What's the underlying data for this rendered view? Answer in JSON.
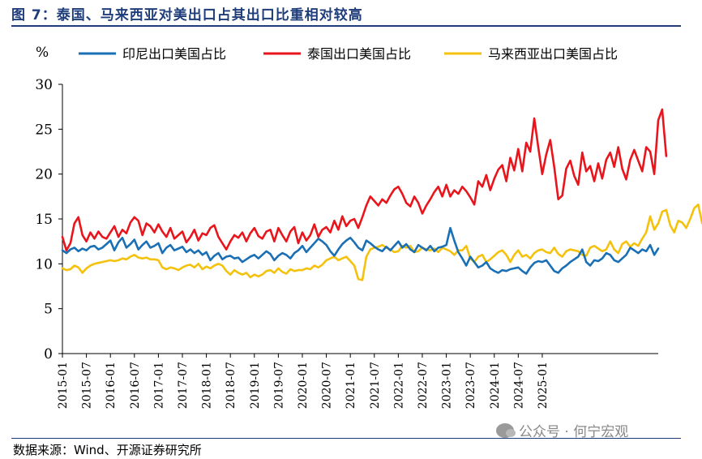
{
  "header": {
    "title": "图 7：泰国、马来西亚对美出口占其出口比重相对较高"
  },
  "footer": {
    "source": "数据来源：Wind、开源证券研究所",
    "watermark": "公众号 · 何宁宏观"
  },
  "chart_data": {
    "type": "line",
    "ylabel": "%",
    "ylim": [
      0,
      30
    ],
    "yticks": [
      0,
      5,
      10,
      15,
      20,
      25,
      30
    ],
    "x_labels": [
      "2015-01",
      "2015-07",
      "2016-01",
      "2016-07",
      "2017-01",
      "2017-07",
      "2018-01",
      "2018-07",
      "2019-01",
      "2019-07",
      "2020-01",
      "2020-07",
      "2021-01",
      "2021-07",
      "2022-01",
      "2022-07",
      "2023-01",
      "2023-07",
      "2024-01",
      "2024-07",
      "2025-01"
    ],
    "x_start": "2015-01",
    "legend_position": "top",
    "series": [
      {
        "name": "印尼出口美国占比",
        "color": "#1a6fb5",
        "values": [
          11.5,
          11.2,
          11.6,
          11.8,
          11.4,
          11.7,
          11.5,
          11.9,
          12.0,
          11.6,
          11.8,
          12.2,
          12.6,
          11.5,
          12.4,
          12.9,
          11.8,
          12.2,
          12.7,
          11.6,
          12.1,
          12.5,
          11.8,
          12.0,
          12.3,
          11.2,
          11.8,
          12.1,
          11.5,
          11.7,
          11.9,
          11.3,
          11.6,
          11.2,
          11.5,
          11.0,
          11.3,
          10.4,
          10.9,
          11.2,
          10.5,
          10.8,
          10.9,
          10.6,
          10.7,
          10.2,
          10.5,
          10.8,
          11.0,
          10.6,
          11.0,
          11.4,
          11.1,
          10.4,
          10.9,
          11.2,
          11.0,
          10.6,
          11.2,
          11.5,
          12.0,
          11.3,
          11.8,
          12.3,
          12.8,
          12.5,
          12.1,
          11.4,
          10.9,
          11.6,
          12.2,
          12.6,
          12.9,
          12.4,
          11.8,
          11.5,
          12.6,
          12.3,
          11.9,
          11.6,
          11.4,
          11.9,
          11.5,
          12.0,
          12.5,
          11.8,
          12.2,
          11.6,
          11.3,
          12.1,
          11.8,
          11.5,
          12.0,
          11.4,
          11.8,
          11.9,
          12.1,
          14.0,
          12.6,
          11.3,
          10.6,
          9.8,
          10.8,
          10.2,
          9.6,
          9.8,
          10.2,
          9.5,
          9.2,
          9.0,
          9.3,
          9.2,
          9.4,
          9.5,
          9.6,
          9.2,
          8.9,
          9.6,
          10.1,
          10.3,
          10.2,
          10.4,
          9.8,
          9.2,
          9.0,
          9.5,
          9.8,
          10.2,
          10.5,
          10.8,
          11.6,
          10.2,
          9.8,
          10.4,
          10.3,
          10.6,
          11.2,
          11.0,
          10.4,
          10.2,
          10.6,
          11.0,
          11.8,
          11.5,
          11.2,
          11.6,
          11.4,
          12.1,
          11.0,
          11.7
        ]
      },
      {
        "name": "泰国出口美国占比",
        "color": "#e8161c",
        "values": [
          13.0,
          11.5,
          12.3,
          14.5,
          15.2,
          13.2,
          12.5,
          13.5,
          12.8,
          13.6,
          13.0,
          12.8,
          13.5,
          14.2,
          13.0,
          13.8,
          13.4,
          14.6,
          15.2,
          14.8,
          13.2,
          14.5,
          14.2,
          13.5,
          14.4,
          13.6,
          13.0,
          14.0,
          12.8,
          13.2,
          13.6,
          12.4,
          13.0,
          13.8,
          12.6,
          13.4,
          13.2,
          14.0,
          14.3,
          13.0,
          12.3,
          11.6,
          12.5,
          13.2,
          12.9,
          13.5,
          12.5,
          13.4,
          14.0,
          13.1,
          12.8,
          13.6,
          13.8,
          12.5,
          14.0,
          13.2,
          12.5,
          13.6,
          14.1,
          12.3,
          13.5,
          12.6,
          13.2,
          14.4,
          13.0,
          13.8,
          14.1,
          13.5,
          14.8,
          13.8,
          15.3,
          14.2,
          14.8,
          15.0,
          14.0,
          15.2,
          16.5,
          17.5,
          17.0,
          16.5,
          17.2,
          16.8,
          17.6,
          18.3,
          18.6,
          17.8,
          16.8,
          16.4,
          17.5,
          16.8,
          15.6,
          16.5,
          17.2,
          18.0,
          18.6,
          17.5,
          18.8,
          17.5,
          18.2,
          17.8,
          18.6,
          18.1,
          17.4,
          16.6,
          19.2,
          18.6,
          19.9,
          18.2,
          19.5,
          20.5,
          21.0,
          19.2,
          21.8,
          20.4,
          22.8,
          20.3,
          23.5,
          22.5,
          26.2,
          23.0,
          20.0,
          22.2,
          23.8,
          20.8,
          17.2,
          17.6,
          20.6,
          21.5,
          19.8,
          18.8,
          22.4,
          20.3,
          20.9,
          19.2,
          21.2,
          19.5,
          21.6,
          22.4,
          20.8,
          23.0,
          20.6,
          19.4,
          21.6,
          22.7,
          21.5,
          20.3,
          23.0,
          22.5,
          20.0,
          26.0,
          27.2,
          22.0
        ]
      },
      {
        "name": "马来西亚出口美国占比",
        "color": "#f4c20d",
        "values": [
          9.5,
          9.3,
          9.4,
          9.8,
          9.6,
          9.0,
          9.5,
          9.8,
          10.0,
          10.1,
          10.2,
          10.3,
          10.4,
          10.3,
          10.4,
          10.6,
          10.5,
          10.8,
          11.0,
          10.7,
          10.6,
          10.7,
          10.5,
          10.5,
          10.4,
          9.6,
          9.4,
          9.6,
          9.5,
          9.3,
          9.6,
          9.8,
          9.9,
          9.6,
          10.0,
          9.4,
          9.7,
          9.5,
          9.8,
          10.0,
          9.8,
          9.2,
          8.8,
          9.3,
          9.0,
          8.8,
          9.0,
          8.5,
          8.8,
          8.6,
          8.8,
          9.2,
          9.3,
          9.0,
          9.5,
          9.1,
          8.9,
          9.4,
          9.2,
          9.3,
          9.3,
          9.5,
          9.4,
          9.8,
          9.6,
          9.9,
          10.4,
          10.6,
          10.8,
          10.4,
          10.6,
          10.8,
          10.3,
          9.8,
          8.3,
          8.2,
          10.8,
          11.6,
          11.8,
          11.9,
          12.1,
          11.8,
          11.6,
          11.3,
          11.4,
          12.0,
          11.8,
          12.0,
          11.3,
          11.4,
          11.8,
          11.6,
          11.5,
          11.7,
          11.3,
          11.8,
          11.6,
          11.4,
          11.0,
          11.5,
          11.5,
          12.0,
          10.6,
          10.2,
          10.8,
          11.0,
          10.2,
          10.5,
          10.9,
          11.3,
          11.5,
          11.0,
          10.2,
          11.0,
          11.5,
          10.8,
          11.0,
          10.6,
          11.2,
          11.5,
          11.6,
          11.3,
          11.2,
          11.8,
          11.1,
          10.8,
          11.4,
          11.6,
          11.5,
          11.4,
          11.0,
          10.9,
          11.8,
          12.0,
          11.7,
          11.4,
          11.6,
          12.5,
          11.6,
          11.2,
          12.2,
          12.5,
          11.9,
          12.3,
          12.0,
          12.8,
          13.5,
          15.3,
          13.8,
          14.5,
          15.8,
          16.0,
          14.3,
          13.5,
          14.8,
          14.6,
          14.0,
          15.0,
          16.2,
          16.6,
          14.5,
          14.8
        ]
      }
    ]
  }
}
